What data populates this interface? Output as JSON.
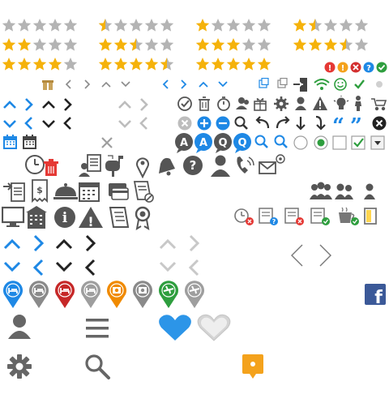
{
  "rating_rows": [
    {
      "ratings": [
        0,
        0.5,
        1,
        1.5
      ]
    },
    {
      "ratings": [
        2,
        2.5,
        3,
        3.5
      ]
    },
    {
      "ratings": [
        4,
        4.5,
        5,
        null
      ]
    }
  ],
  "max_stars": 5,
  "colors": {
    "star_fill": "#f5b20a",
    "star_empty": "#b4b4b4",
    "blue": "#1e88e5",
    "dark": "#3b3b3b",
    "gray": "#7c7c7c",
    "light_gray": "#bdbdbd",
    "red": "#e53935",
    "green": "#2e9e3e",
    "orange": "#f4a21c",
    "heart_blue": "#2c95e8",
    "facebook": "#3b5998"
  },
  "status_dots": [
    "alert-red",
    "alert-orange",
    "error-red",
    "help-blue",
    "check-green"
  ],
  "checkbox_state": {
    "unchecked": false,
    "checked": true
  },
  "radio_state": {
    "empty": false,
    "selected": true
  },
  "quote_glyphs": {
    "open": "“",
    "close": "”"
  },
  "info_glyph": "i",
  "warning_glyph": "!",
  "help_glyph": "?",
  "dropdown_glyph": "▾",
  "close_glyph": "×",
  "social": {
    "facebook_glyph": "f"
  },
  "map_markers": [
    {
      "icon": "hotel-icon",
      "color": "#1e88e5"
    },
    {
      "icon": "hotel-icon",
      "color": "#8a8a8a"
    },
    {
      "icon": "hotel-icon",
      "color": "#c62828"
    },
    {
      "icon": "hotel-icon",
      "color": "#9e9e9e"
    },
    {
      "icon": "camera-icon",
      "color": "#f08a00"
    },
    {
      "icon": "camera-icon",
      "color": "#8a8a8a"
    },
    {
      "icon": "airport-icon",
      "color": "#2e9e3e"
    },
    {
      "icon": "airport-icon",
      "color": "#9e9e9e"
    }
  ],
  "bubble_letters": [
    "A",
    "A",
    "Q",
    "Q"
  ]
}
